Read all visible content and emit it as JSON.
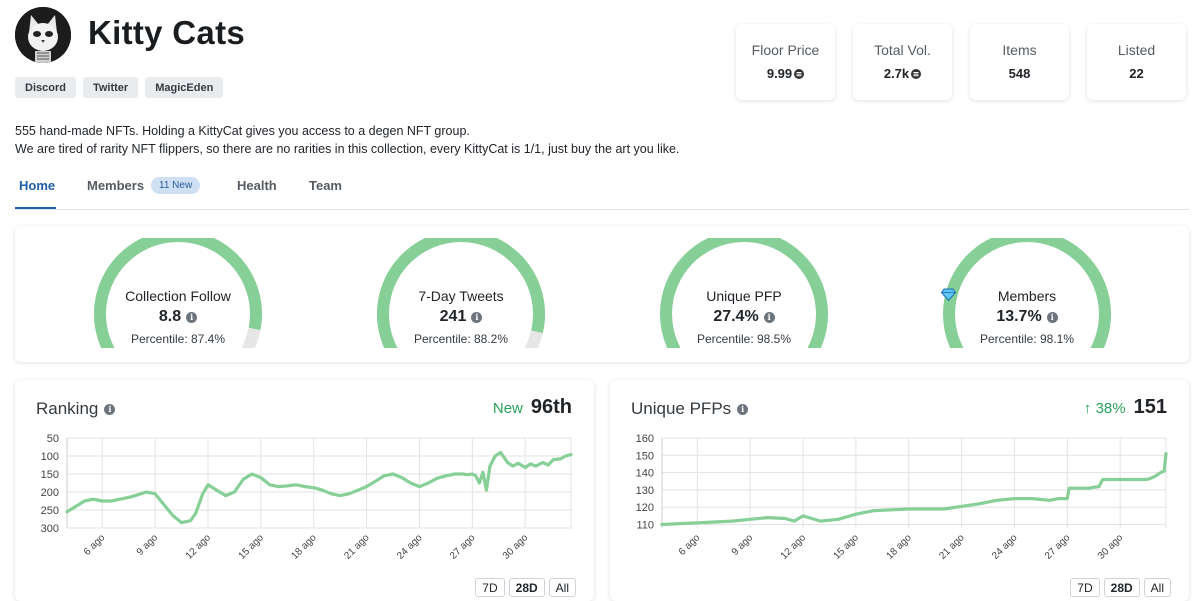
{
  "collection": {
    "name": "Kitty Cats",
    "description_line1": "555 hand-made NFTs. Holding a KittyCat gives you access to a degen NFT group.",
    "description_line2": "We are tired of rarity NFT flippers, so there are no rarities in this collection, every KittyCat is 1/1, just buy the art you like."
  },
  "links": [
    "Discord",
    "Twitter",
    "MagicEden"
  ],
  "stats": [
    {
      "label": "Floor Price",
      "value": "9.99",
      "coin": true
    },
    {
      "label": "Total Vol.",
      "value": "2.7k",
      "coin": true
    },
    {
      "label": "Items",
      "value": "548",
      "coin": false
    },
    {
      "label": "Listed",
      "value": "22",
      "coin": false
    }
  ],
  "tabs": {
    "home": "Home",
    "members": "Members",
    "members_badge": "11 New",
    "health": "Health",
    "team": "Team"
  },
  "gauges": [
    {
      "title": "Collection Follow",
      "value": "8.8",
      "percentile": "Percentile: 87.4%",
      "fill": 0.874,
      "diamond": false
    },
    {
      "title": "7-Day Tweets",
      "value": "241",
      "percentile": "Percentile: 88.2%",
      "fill": 0.882,
      "diamond": false
    },
    {
      "title": "Unique PFP",
      "value": "27.4%",
      "percentile": "Percentile: 98.5%",
      "fill": 0.985,
      "diamond": false
    },
    {
      "title": "Members",
      "value": "13.7%",
      "percentile": "Percentile: 98.1%",
      "fill": 0.981,
      "diamond": true
    }
  ],
  "colors": {
    "gauge_fill": "#86cf96",
    "gauge_track": "#e6e6e6",
    "line": "#86cf96",
    "accent": "#1f5faa",
    "positive": "#2aa15a"
  },
  "ranking": {
    "title": "Ranking",
    "change": "New",
    "value": "96th"
  },
  "unique_pfps": {
    "title": "Unique PFPs",
    "change": "↑ 38%",
    "value": "151"
  },
  "range_buttons": [
    "7D",
    "28D",
    "All"
  ],
  "chart_data": [
    {
      "type": "line",
      "title": "Ranking",
      "ylim": [
        300,
        50
      ],
      "yticks": [
        50,
        100,
        150,
        200,
        250,
        300
      ],
      "xticks": [
        "6 ago",
        "9 ago",
        "12 ago",
        "15 ago",
        "18 ago",
        "21 ago",
        "24 ago",
        "27 ago",
        "30 ago"
      ],
      "x": [
        4,
        5,
        5.5,
        6,
        6.5,
        7,
        7.5,
        8,
        8.5,
        9,
        9.5,
        10,
        10.5,
        11,
        11.3,
        11.7,
        12,
        12.5,
        13,
        13.5,
        14,
        14.5,
        15,
        15.5,
        16,
        16.5,
        17,
        17.5,
        18,
        18.5,
        19,
        19.5,
        20,
        20.5,
        21,
        21.5,
        22,
        22.5,
        23,
        23.5,
        24,
        24.5,
        25,
        25.5,
        26,
        26.5,
        26.7,
        27,
        27.2,
        27.4,
        27.6,
        27.8,
        28,
        28.3,
        28.6,
        29,
        29.3,
        29.6,
        30,
        30.3,
        30.6,
        31,
        31.3,
        31.6,
        32,
        32.3,
        32.6
      ],
      "y": [
        255,
        225,
        220,
        225,
        225,
        220,
        215,
        208,
        200,
        205,
        235,
        265,
        285,
        280,
        260,
        205,
        180,
        195,
        210,
        200,
        165,
        150,
        160,
        180,
        185,
        183,
        180,
        185,
        188,
        195,
        205,
        210,
        205,
        195,
        185,
        170,
        155,
        150,
        160,
        175,
        185,
        175,
        162,
        155,
        150,
        150,
        152,
        150,
        155,
        175,
        145,
        195,
        128,
        100,
        90,
        118,
        128,
        120,
        132,
        122,
        128,
        118,
        125,
        110,
        108,
        100,
        96
      ]
    },
    {
      "type": "line",
      "title": "Unique PFPs",
      "ylim": [
        108,
        160
      ],
      "yticks": [
        110,
        120,
        130,
        140,
        150,
        160
      ],
      "xticks": [
        "6 ago",
        "9 ago",
        "12 ago",
        "15 ago",
        "18 ago",
        "21 ago",
        "24 ago",
        "27 ago",
        "30 ago"
      ],
      "x": [
        4,
        6,
        8,
        9,
        10,
        11,
        11.5,
        12,
        13,
        14,
        15,
        16,
        18,
        19,
        20,
        22,
        23,
        24,
        25,
        26,
        26.5,
        27,
        27.1,
        28,
        28.2,
        28.8,
        29,
        30,
        31,
        31.5,
        31.8,
        32,
        32.3,
        32.5,
        32.6
      ],
      "y": [
        110,
        111,
        112,
        113,
        114,
        113.5,
        112,
        115,
        112,
        113,
        116,
        118,
        119,
        119,
        119,
        122,
        124,
        125,
        125,
        124,
        125,
        125,
        131,
        131,
        131,
        132,
        136,
        136,
        136,
        136,
        137,
        138,
        140,
        141,
        151
      ]
    }
  ]
}
